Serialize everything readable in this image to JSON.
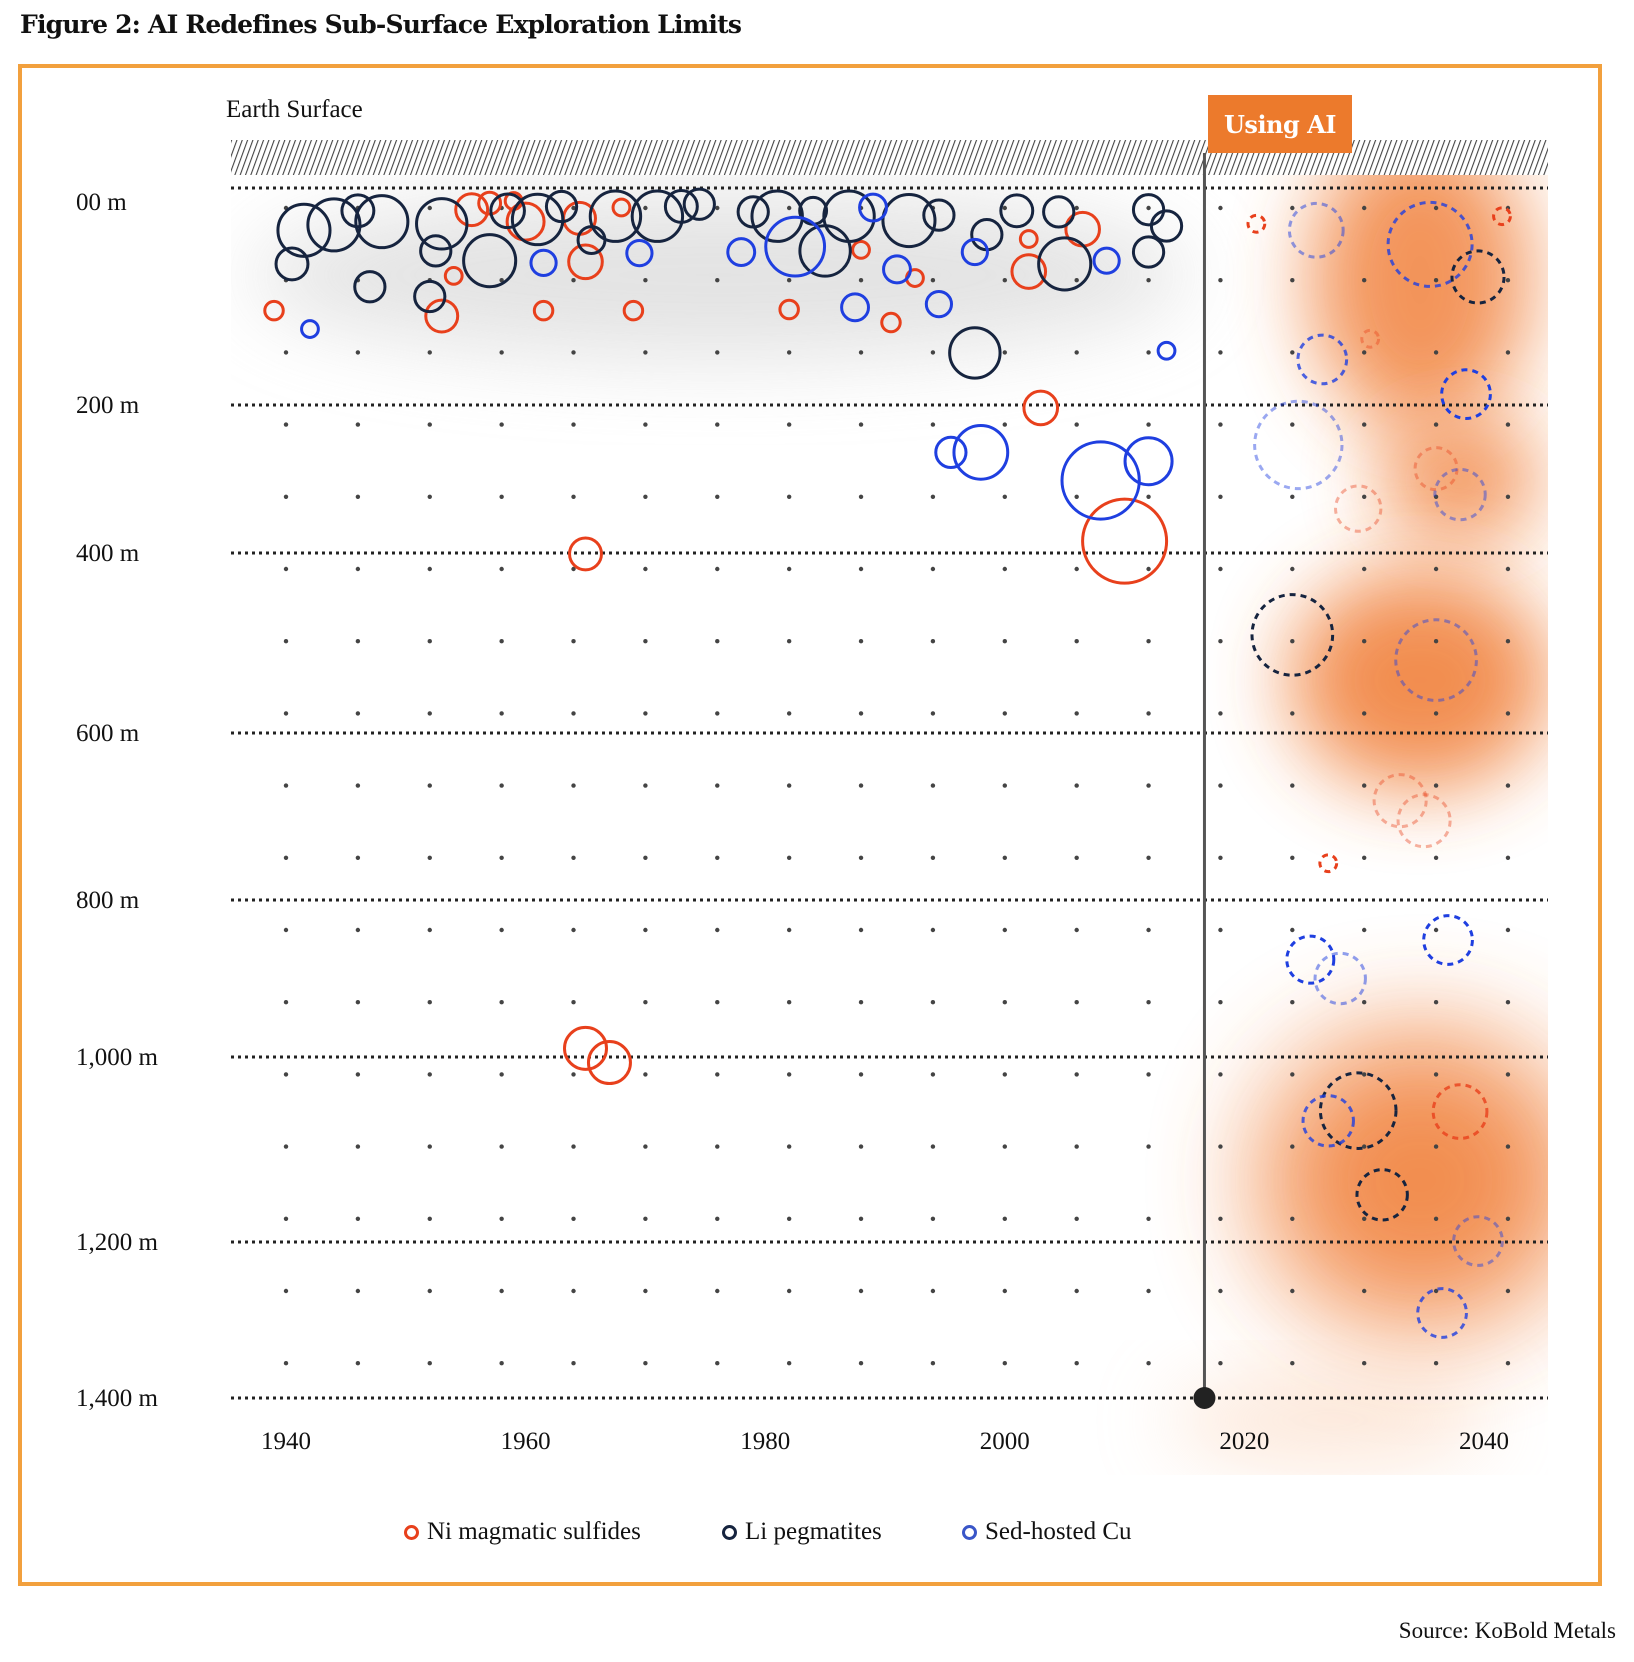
{
  "chart_data": {
    "type": "scatter",
    "title": "Figure 2: AI Redefines Sub-Surface Exploration Limits",
    "surface_label": "Earth Surface",
    "annotation": "Using AI",
    "ai_start_year": 2017,
    "source": "Source: KoBold Metals",
    "xlabel": "",
    "ylabel": "",
    "x_ticks": [
      {
        "v": 1940,
        "label": "1940"
      },
      {
        "v": 1960,
        "label": "1960"
      },
      {
        "v": 1980,
        "label": "1980"
      },
      {
        "v": 2000,
        "label": "2000"
      },
      {
        "v": 2020,
        "label": "2020"
      },
      {
        "v": 2040,
        "label": "2040"
      }
    ],
    "y_ticks": [
      {
        "v": 0,
        "label": "00 m"
      },
      {
        "v": 200,
        "label": "200 m"
      },
      {
        "v": 400,
        "label": "400 m"
      },
      {
        "v": 600,
        "label": "600 m"
      },
      {
        "v": 800,
        "label": "800 m"
      },
      {
        "v": 1000,
        "label": "1,000 m"
      },
      {
        "v": 1200,
        "label": "1,200 m"
      },
      {
        "v": 1400,
        "label": "1,400 m"
      }
    ],
    "xlim": [
      1935,
      2045
    ],
    "ylim": [
      0,
      1400
    ],
    "legend_position": "bottom-center",
    "series": [
      {
        "key": "ni",
        "name": "Ni magmatic sulfides",
        "color": "#e8401c",
        "points": [
          [
            1939,
            113,
            1.1
          ],
          [
            1953,
            118,
            1.9
          ],
          [
            1954,
            81,
            1
          ],
          [
            1955.5,
            20,
            1.9
          ],
          [
            1957,
            14,
            1.3
          ],
          [
            1959,
            12,
            1
          ],
          [
            1960,
            31,
            2.2
          ],
          [
            1965,
            68,
            2
          ],
          [
            1961.5,
            113,
            1.1
          ],
          [
            1969,
            113,
            1.1
          ],
          [
            1968,
            18,
            1
          ],
          [
            1964.5,
            28,
            1.9
          ],
          [
            1982,
            112,
            1.1
          ],
          [
            1988,
            57,
            1
          ],
          [
            1990.5,
            124,
            1.1
          ],
          [
            1992.5,
            83,
            1
          ],
          [
            2002,
            47,
            1
          ],
          [
            2002,
            77,
            2
          ],
          [
            2006.5,
            38,
            2
          ],
          [
            2003,
            204,
            2
          ],
          [
            1965,
            401,
            1.9
          ],
          [
            2010,
            384,
            5
          ],
          [
            1965,
            989,
            2.5
          ],
          [
            1967,
            1006,
            2.5
          ]
        ],
        "predicted": [
          [
            2021,
            33,
            1,
            1
          ],
          [
            2041.5,
            26,
            1,
            1
          ],
          [
            2030.5,
            139,
            1,
            0.4
          ],
          [
            2036,
            286,
            2.5,
            0.4
          ],
          [
            2029.5,
            340,
            2.7,
            0.4
          ],
          [
            2033,
            681,
            3.1,
            0.4
          ],
          [
            2035,
            705,
            3.1,
            0.4
          ],
          [
            2027,
            756,
            1,
            1
          ],
          [
            2038,
            1059,
            3.2,
            0.8
          ]
        ]
      },
      {
        "key": "li",
        "name": "Li pegmatites",
        "color": "#16243f",
        "points": [
          [
            1941.5,
            39,
            3.1
          ],
          [
            1944,
            34,
            3.1
          ],
          [
            1946,
            21,
            1.9
          ],
          [
            1948,
            31,
            3.1
          ],
          [
            1940.5,
            70,
            1.9
          ],
          [
            1947,
            91,
            1.8
          ],
          [
            1952,
            100,
            1.8
          ],
          [
            1953,
            33,
            3
          ],
          [
            1952.5,
            58,
            1.8
          ],
          [
            1957,
            67,
            3.1
          ],
          [
            1958.5,
            21,
            2
          ],
          [
            1961,
            29,
            3
          ],
          [
            1963,
            17,
            1.8
          ],
          [
            1965.5,
            48,
            1.6
          ],
          [
            1967.5,
            26,
            3
          ],
          [
            1971,
            26,
            3
          ],
          [
            1973,
            17,
            1.9
          ],
          [
            1974.5,
            15,
            1.8
          ],
          [
            1979,
            22,
            1.8
          ],
          [
            1981,
            26,
            3
          ],
          [
            1984,
            21,
            1.6
          ],
          [
            1985,
            58,
            3
          ],
          [
            1987,
            26,
            3
          ],
          [
            1992,
            30,
            3.1
          ],
          [
            1994.5,
            25,
            1.8
          ],
          [
            1998.5,
            43,
            1.8
          ],
          [
            2001,
            21,
            1.9
          ],
          [
            2004.5,
            22,
            1.8
          ],
          [
            2005,
            70,
            3.1
          ],
          [
            2012,
            20,
            1.8
          ],
          [
            2013.5,
            35,
            1.8
          ],
          [
            2012,
            59,
            1.8
          ],
          [
            1997.5,
            152,
            3
          ]
        ],
        "predicted": [
          [
            2039.5,
            82,
            3.1,
            1
          ],
          [
            2024,
            491,
            4.8,
            1
          ],
          [
            2031.5,
            1149,
            3,
            1
          ],
          [
            2029.5,
            1058,
            4.5,
            1
          ]
        ]
      },
      {
        "key": "cu",
        "name": "Sed-hosted Cu",
        "color": "#1f3fe0",
        "points": [
          [
            1942,
            130,
            1
          ],
          [
            1961.5,
            69,
            1.5
          ],
          [
            1969.5,
            60,
            1.5
          ],
          [
            1978,
            59,
            1.6
          ],
          [
            1982.5,
            54,
            3.5
          ],
          [
            1989,
            18,
            1.6
          ],
          [
            1987.5,
            110,
            1.6
          ],
          [
            1991,
            75,
            1.6
          ],
          [
            1994.5,
            107,
            1.5
          ],
          [
            1997.5,
            59,
            1.5
          ],
          [
            2008.5,
            67,
            1.5
          ],
          [
            2013.5,
            150,
            1
          ],
          [
            1995.5,
            264,
            1.8
          ],
          [
            1998,
            264,
            3.2
          ],
          [
            2008,
            302,
            4.6
          ],
          [
            2012,
            276,
            2.8
          ]
        ],
        "predicted": [
          [
            2026,
            39,
            3.2,
            0.5
          ],
          [
            2035.5,
            52,
            5,
            0.8
          ],
          [
            2026.5,
            158,
            2.9,
            0.8
          ],
          [
            2038.5,
            190,
            2.9,
            1
          ],
          [
            2024.5,
            254,
            5.2,
            0.45
          ],
          [
            2038,
            321,
            3,
            0.45
          ],
          [
            2036,
            519,
            4.8,
            0.45
          ],
          [
            2025.5,
            876,
            2.8,
            1
          ],
          [
            2028,
            900,
            3,
            0.5
          ],
          [
            2037,
            851,
            2.9,
            1
          ],
          [
            2027,
            1069,
            3,
            0.8
          ],
          [
            2039.5,
            1199,
            2.9,
            0.45
          ],
          [
            2036.5,
            1291,
            2.9,
            0.8
          ]
        ]
      }
    ]
  }
}
